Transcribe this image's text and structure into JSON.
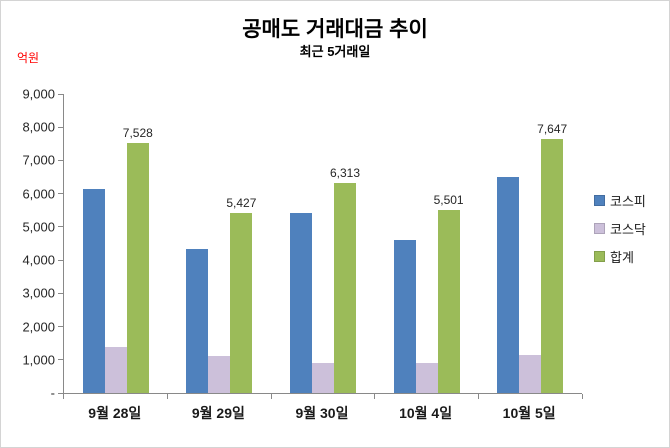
{
  "chart": {
    "title": "공매도 거래대금 추이",
    "subtitle": "최근 5거래일",
    "unit_label": "억원",
    "unit_color": "#ff0000"
  },
  "chart_data": {
    "type": "bar",
    "title": "공매도 거래대금 추이",
    "subtitle": "최근 5거래일",
    "ylabel": "억원",
    "categories": [
      "9월 28일",
      "9월 29일",
      "9월 30일",
      "10월 4일",
      "10월 5일"
    ],
    "series": [
      {
        "name": "코스피",
        "color": "#4f81bd",
        "values": [
          6128,
          4327,
          5413,
          4601,
          6497
        ]
      },
      {
        "name": "코스닥",
        "color": "#ccc0da",
        "values": [
          1400,
          1100,
          900,
          900,
          1150
        ]
      },
      {
        "name": "합계",
        "color": "#9bbb59",
        "values": [
          7528,
          5427,
          6313,
          5501,
          7647
        ],
        "labels": [
          "7,528",
          "5,427",
          "6,313",
          "5,501",
          "7,647"
        ]
      }
    ],
    "ylim": [
      0,
      9000
    ],
    "y_ticks": [
      "9,000",
      "8,000",
      "7,000",
      "6,000",
      "5,000",
      "4,000",
      "3,000",
      "2,000",
      "1,000",
      "-"
    ],
    "grid": false,
    "legend_position": "right"
  }
}
